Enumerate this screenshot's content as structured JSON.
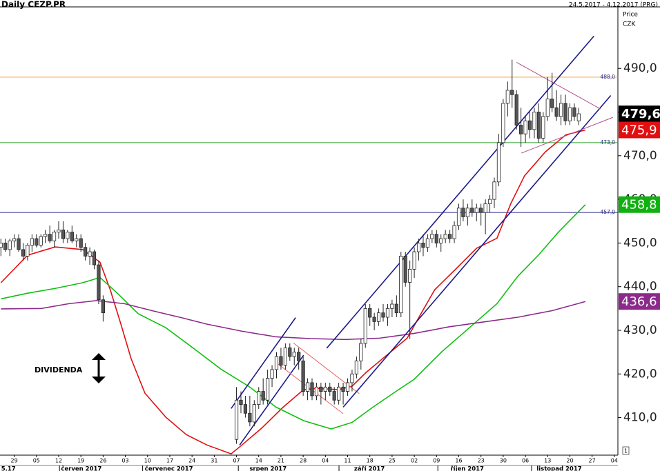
{
  "header": {
    "title": "Daily CEZP.PR",
    "range": "24.5.2017 - 4.12.2017 (PRG)",
    "price": "Price",
    "currency": "CZK"
  },
  "chart_data": {
    "type": "candlestick",
    "xlim": [
      -0.2,
      138.8
    ],
    "ylim": [
      401.4,
      504.1
    ],
    "yticks": [
      {
        "value": 410,
        "label": "410,0"
      },
      {
        "value": 420,
        "label": "420,0"
      },
      {
        "value": 430,
        "label": "430,0"
      },
      {
        "value": 440,
        "label": "440,0"
      },
      {
        "value": 450,
        "label": "450,0"
      },
      {
        "value": 460,
        "label": "460,0"
      },
      {
        "value": 470,
        "label": "470,0"
      },
      {
        "value": 480,
        "label": "480,0"
      },
      {
        "value": 490,
        "label": "490,0"
      }
    ],
    "xticks": [
      {
        "value": 3,
        "label": "29"
      },
      {
        "value": 8,
        "label": "05"
      },
      {
        "value": 13,
        "label": "12"
      },
      {
        "value": 18,
        "label": "19"
      },
      {
        "value": 23,
        "label": "26"
      },
      {
        "value": 28,
        "label": "03"
      },
      {
        "value": 33,
        "label": "10"
      },
      {
        "value": 38,
        "label": "17"
      },
      {
        "value": 43,
        "label": "24"
      },
      {
        "value": 48,
        "label": "31"
      },
      {
        "value": 53,
        "label": "07"
      },
      {
        "value": 58,
        "label": "14"
      },
      {
        "value": 63,
        "label": "21"
      },
      {
        "value": 68,
        "label": "28"
      },
      {
        "value": 73,
        "label": "04"
      },
      {
        "value": 78,
        "label": "11"
      },
      {
        "value": 83,
        "label": "18"
      },
      {
        "value": 88,
        "label": "25"
      },
      {
        "value": 93,
        "label": "02"
      },
      {
        "value": 98,
        "label": "09"
      },
      {
        "value": 103,
        "label": "16"
      },
      {
        "value": 108,
        "label": "23"
      },
      {
        "value": 113,
        "label": "30"
      },
      {
        "value": 118,
        "label": "06"
      },
      {
        "value": 123,
        "label": "13"
      },
      {
        "value": 128,
        "label": "20"
      },
      {
        "value": 133,
        "label": "27"
      },
      {
        "value": 138,
        "label": "04"
      }
    ],
    "months": [
      {
        "value": 1.7,
        "label": "5.17"
      },
      {
        "value": 18.1,
        "label": "červen 2017"
      },
      {
        "value": 37.8,
        "label": "červenec 2017"
      },
      {
        "value": 60.1,
        "label": "srpen 2017"
      },
      {
        "value": 82.9,
        "label": "září 2017"
      },
      {
        "value": 104.9,
        "label": "říjen 2017"
      },
      {
        "value": 125.6,
        "label": "listopad 2017"
      }
    ],
    "x": [
      0,
      1,
      2,
      3,
      4,
      5,
      6,
      7,
      8,
      9,
      10,
      11,
      12,
      13,
      14,
      15,
      16,
      17,
      18,
      19,
      20,
      21,
      22,
      23,
      53,
      54,
      55,
      56,
      57,
      58,
      59,
      60,
      61,
      62,
      63,
      64,
      65,
      66,
      67,
      68,
      69,
      70,
      71,
      72,
      73,
      74,
      75,
      76,
      77,
      78,
      79,
      80,
      81,
      82,
      83,
      84,
      85,
      86,
      87,
      88,
      89,
      90,
      91,
      92,
      93,
      94,
      95,
      96,
      97,
      98,
      99,
      100,
      101,
      102,
      103,
      104,
      105,
      106,
      107,
      108,
      109,
      110,
      111,
      112,
      113,
      114,
      115,
      116,
      117,
      118,
      119,
      120,
      121,
      122,
      123,
      124,
      125,
      126,
      127,
      128,
      129,
      130
    ],
    "open": [
      449,
      450,
      448.5,
      450.5,
      451,
      448.5,
      447,
      449.5,
      451,
      449.5,
      451.5,
      452,
      450.5,
      452.5,
      453,
      451,
      452.5,
      450.5,
      451,
      449,
      447,
      448,
      445,
      437,
      405,
      414,
      413,
      411,
      409,
      413,
      416,
      414,
      419,
      421,
      424,
      422,
      426,
      424,
      425,
      423,
      416,
      418,
      415,
      417,
      416,
      417,
      416,
      414,
      417,
      416,
      418,
      420,
      423,
      427,
      435,
      433,
      432,
      434,
      433,
      435,
      436,
      434,
      447,
      441,
      444,
      448,
      450,
      449,
      451,
      452,
      450,
      451,
      452,
      451,
      454,
      458,
      456,
      458,
      457,
      458,
      457,
      459,
      460,
      464,
      473,
      482,
      485,
      484,
      477,
      475,
      478,
      476,
      480,
      474,
      479,
      483,
      481,
      479,
      482,
      478,
      481,
      478
    ],
    "high": [
      451,
      451,
      451,
      452,
      452,
      450,
      450,
      452,
      452,
      452,
      453,
      454,
      453,
      455,
      455,
      453,
      454,
      452,
      452,
      450,
      449,
      448.5,
      446,
      438,
      417,
      416,
      415,
      415,
      414,
      417,
      419,
      421,
      422,
      425,
      426,
      427,
      427,
      426,
      426,
      424,
      419,
      419,
      418,
      418,
      418,
      418,
      417,
      418,
      418,
      419,
      421,
      424,
      428,
      436,
      436,
      434,
      435,
      436,
      436,
      437,
      438,
      448,
      448,
      446,
      449,
      451,
      452,
      452,
      453,
      453,
      452,
      453,
      453,
      455,
      459,
      460,
      459,
      460,
      459,
      459,
      460,
      461,
      465,
      475,
      483,
      487,
      492,
      485,
      481,
      479,
      480,
      481,
      482,
      480,
      488,
      489,
      485,
      484,
      484,
      482,
      482,
      481
    ],
    "low": [
      447,
      448,
      447,
      449,
      448,
      446,
      446,
      448,
      449,
      449,
      450,
      450,
      449,
      451,
      450,
      450,
      450,
      449,
      448,
      446,
      445,
      444,
      436,
      432,
      404,
      411,
      410,
      408,
      408,
      412,
      413,
      413,
      417,
      419,
      421,
      421,
      423,
      422,
      421,
      415,
      414,
      414,
      414,
      413,
      414,
      415,
      413,
      413,
      413,
      415,
      416,
      419,
      421,
      426,
      431,
      430,
      431,
      432,
      431,
      433,
      433,
      433,
      440,
      428,
      442,
      446,
      447,
      448,
      450,
      449,
      448,
      450,
      450,
      450,
      453,
      455,
      454,
      456,
      455,
      454,
      452,
      457,
      458,
      463,
      472,
      479,
      481,
      476,
      472,
      473,
      474,
      474,
      473,
      473,
      478,
      480,
      478,
      477,
      477,
      477,
      478,
      477
    ],
    "close": [
      450,
      448.5,
      450.5,
      451,
      448.5,
      447,
      449.5,
      451,
      449.5,
      451.5,
      452,
      450.5,
      452.5,
      453,
      451,
      452.5,
      450.5,
      451,
      449,
      447,
      448,
      445,
      437,
      434,
      414,
      413,
      411,
      409,
      413,
      416,
      414,
      419,
      421,
      424,
      422,
      426,
      424,
      425,
      423,
      416,
      418,
      415,
      417,
      416,
      417,
      416,
      414,
      417,
      416,
      418,
      420,
      423,
      427,
      435,
      433,
      432,
      434,
      433,
      435,
      436,
      434,
      447,
      441,
      444,
      448,
      450,
      449,
      451,
      452,
      450,
      451,
      452,
      451,
      454,
      458,
      456,
      458,
      457,
      458,
      457,
      459,
      460,
      464,
      473,
      482,
      485,
      484,
      477,
      475,
      478,
      476,
      480,
      474,
      479,
      483,
      481,
      479,
      482,
      478,
      481,
      479,
      479.6
    ],
    "moving_averages": [
      {
        "color": "#e01010",
        "x": [
          0,
          6.0,
          12.2,
          18.4,
          22.3,
          24.6,
          27.0,
          29.3,
          32.4,
          37.1,
          41.7,
          46.4,
          51.8,
          54.2,
          58.8,
          63.5,
          68.1,
          71.2,
          75.9,
          79.0,
          82.1,
          86.8,
          91.4,
          94.5,
          97.6,
          102.3,
          107.0,
          111.6,
          114.7,
          117.8,
          122.5,
          127.1,
          131.5
        ],
        "values": [
          440.9,
          447.2,
          449.1,
          448.5,
          445.6,
          439.3,
          431.4,
          423.5,
          415.6,
          410.1,
          406.1,
          403.7,
          401.7,
          403.7,
          407.7,
          412.4,
          416.4,
          416.7,
          416.4,
          417.2,
          420.3,
          424.3,
          428.2,
          433.8,
          439.3,
          444.0,
          448.8,
          451.1,
          459.0,
          465.4,
          470.9,
          474.8,
          475.9
        ]
      },
      {
        "color": "#10c010",
        "x": [
          0,
          6.0,
          12.2,
          18.4,
          22.3,
          26.2,
          30.9,
          37.1,
          43.3,
          49.5,
          55.7,
          61.9,
          68.1,
          74.3,
          79.0,
          83.7,
          88.3,
          93.0,
          99.2,
          105.4,
          111.6,
          116.3,
          120.9,
          125.6,
          131.5
        ],
        "values": [
          437.2,
          438.5,
          439.6,
          440.9,
          442.1,
          438.5,
          433.8,
          430.6,
          425.9,
          421.1,
          417.2,
          412.4,
          409.3,
          407.4,
          408.9,
          412.4,
          415.6,
          418.8,
          425.1,
          430.6,
          436.1,
          442.4,
          447.2,
          452.7,
          458.8
        ]
      },
      {
        "color": "#8b2a8b",
        "x": [
          0,
          9.1,
          15.3,
          21.5,
          27.8,
          34.0,
          40.2,
          46.4,
          54.2,
          61.9,
          69.7,
          77.5,
          85.2,
          93.0,
          100.8,
          108.5,
          116.3,
          124.0,
          131.5
        ],
        "values": [
          434.9,
          435.0,
          436.1,
          436.8,
          436.1,
          434.5,
          433.0,
          431.4,
          429.8,
          428.5,
          428.1,
          427.9,
          428.2,
          429.3,
          430.8,
          431.9,
          433.0,
          434.5,
          436.6
        ]
      }
    ],
    "levels": [
      {
        "value": 488,
        "label": "488,0",
        "color": "#f0a040"
      },
      {
        "value": 473,
        "label": "473,0",
        "color": "#30a030"
      },
      {
        "value": 457,
        "label": "457,0",
        "color": "#2a2a8c"
      }
    ],
    "trend_lines": [
      {
        "color": "#1a1a8c",
        "x": [
          51.8,
          66.3
        ],
        "y": [
          412.1,
          432.9
        ]
      },
      {
        "color": "#1a1a8c",
        "x": [
          53.7,
          68.1
        ],
        "y": [
          403.7,
          424.3
        ]
      },
      {
        "color": "#e86060",
        "x": [
          65.8,
          80.6
        ],
        "y": [
          427.1,
          415.5
        ]
      },
      {
        "color": "#e86060",
        "x": [
          62.2,
          77.0
        ],
        "y": [
          422.4,
          410.9
        ]
      },
      {
        "color": "#1a1a8c",
        "x": [
          73.3,
          133.4
        ],
        "y": [
          425.9,
          497.4
        ]
      },
      {
        "color": "#1a1a8c",
        "x": [
          77.0,
          137.2
        ],
        "y": [
          412.4,
          483.8
        ]
      },
      {
        "color": "#b0508a",
        "x": [
          116.0,
          134.9
        ],
        "y": [
          491.4,
          480.7
        ]
      },
      {
        "color": "#b0508a",
        "x": [
          117.1,
          137.7
        ],
        "y": [
          470.6,
          478.8
        ]
      }
    ],
    "price_labels": [
      {
        "value": 479.6,
        "label": "479,6",
        "color": "#000000"
      },
      {
        "value": 475.9,
        "label": "475,9",
        "color": "#e01010"
      },
      {
        "value": 458.8,
        "label": "458,8",
        "color": "#10b010"
      },
      {
        "value": 436.6,
        "label": "436,6",
        "color": "#8b2a8b"
      }
    ],
    "annotation": "DIVIDENDA",
    "pane_label": "1"
  }
}
